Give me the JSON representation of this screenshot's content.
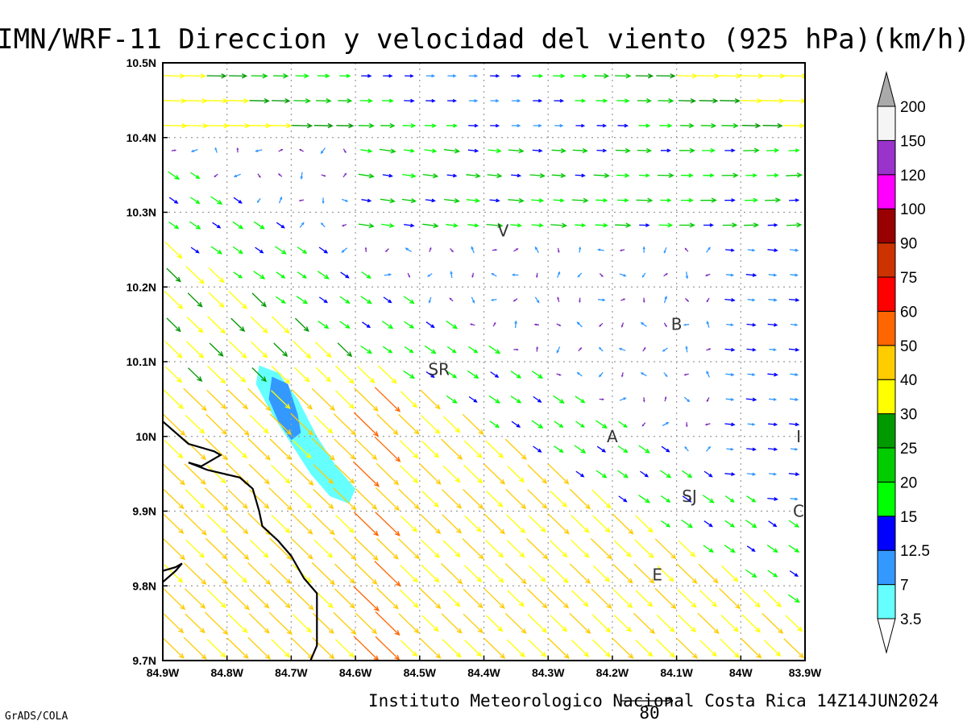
{
  "title": "IMN/WRF-11 Direccion y velocidad del viento (925 hPa)(km/h)",
  "footer": "Instituto Meteorologico Nacional Costa Rica 14Z14JUN2024",
  "software_label": "GrADS/COLA",
  "reference_vector_label": "80",
  "x_axis": {
    "ticks": [
      "84.9W",
      "84.8W",
      "84.7W",
      "84.6W",
      "84.5W",
      "84.4W",
      "84.3W",
      "84.2W",
      "84.1W",
      "84W",
      "83.9W"
    ],
    "range": [
      -84.9,
      -83.9
    ]
  },
  "y_axis": {
    "ticks": [
      "9.7N",
      "9.8N",
      "9.9N",
      "10N",
      "10.1N",
      "10.2N",
      "10.3N",
      "10.4N",
      "10.5N"
    ],
    "range": [
      9.7,
      10.5
    ]
  },
  "colorbar": {
    "labels": [
      "3.5",
      "7",
      "12.5",
      "15",
      "20",
      "25",
      "30",
      "40",
      "50",
      "60",
      "75",
      "90",
      "100",
      "120",
      "150",
      "200"
    ],
    "colors": [
      "#66ffff",
      "#3399ff",
      "#0000ff",
      "#00ff00",
      "#00cc00",
      "#009900",
      "#ffff00",
      "#ffcc00",
      "#ff6600",
      "#ff0000",
      "#cc3300",
      "#990000",
      "#ff00ff",
      "#9933cc",
      "#f5f5f5"
    ],
    "arrow_top_color": "#aaaaaa",
    "arrow_bottom_color": "#ffffff"
  },
  "stations": [
    {
      "label": "V",
      "lon": -84.37,
      "lat": 10.275
    },
    {
      "label": "SR",
      "lon": -84.47,
      "lat": 10.09
    },
    {
      "label": "B",
      "lon": -84.1,
      "lat": 10.15
    },
    {
      "label": "A",
      "lon": -84.2,
      "lat": 10.0
    },
    {
      "label": "SJ",
      "lon": -84.08,
      "lat": 9.92
    },
    {
      "label": "C",
      "lon": -83.91,
      "lat": 9.9
    },
    {
      "label": "E",
      "lon": -84.13,
      "lat": 9.815
    },
    {
      "label": "I",
      "lon": -83.91,
      "lat": 10.0
    }
  ],
  "contours": [
    {
      "name": "speed-3.5",
      "color": "#66ffff",
      "points": [
        [
          -84.75,
          10.095
        ],
        [
          -84.72,
          10.085
        ],
        [
          -84.69,
          10.05
        ],
        [
          -84.66,
          10.0
        ],
        [
          -84.63,
          9.96
        ],
        [
          -84.6,
          9.93
        ],
        [
          -84.61,
          9.91
        ],
        [
          -84.64,
          9.92
        ],
        [
          -84.67,
          9.95
        ],
        [
          -84.7,
          9.99
        ],
        [
          -84.73,
          10.03
        ],
        [
          -84.755,
          10.07
        ]
      ]
    },
    {
      "name": "speed-7",
      "color": "#3399ff",
      "points": [
        [
          -84.73,
          10.08
        ],
        [
          -84.705,
          10.07
        ],
        [
          -84.69,
          10.03
        ],
        [
          -84.685,
          10.005
        ],
        [
          -84.7,
          9.995
        ],
        [
          -84.72,
          10.02
        ],
        [
          -84.735,
          10.05
        ]
      ]
    }
  ],
  "coastline": [
    [
      [
        -84.9,
        10.02
      ],
      [
        -84.86,
        9.99
      ],
      [
        -84.82,
        9.98
      ],
      [
        -84.81,
        9.975
      ],
      [
        -84.84,
        9.96
      ],
      [
        -84.86,
        9.965
      ],
      [
        -84.83,
        9.955
      ],
      [
        -84.78,
        9.945
      ],
      [
        -84.76,
        9.93
      ],
      [
        -84.75,
        9.9
      ],
      [
        -84.745,
        9.88
      ],
      [
        -84.72,
        9.86
      ],
      [
        -84.7,
        9.84
      ],
      [
        -84.68,
        9.81
      ],
      [
        -84.66,
        9.79
      ],
      [
        -84.66,
        9.75
      ],
      [
        -84.66,
        9.72
      ],
      [
        -84.67,
        9.7
      ]
    ],
    [
      [
        -84.9,
        9.82
      ],
      [
        -84.88,
        9.825
      ],
      [
        -84.87,
        9.83
      ],
      [
        -84.88,
        9.82
      ],
      [
        -84.9,
        9.805
      ]
    ]
  ],
  "wind_field": {
    "lon_range": [
      -84.9,
      -83.9
    ],
    "lat_range": [
      9.7,
      10.5
    ],
    "grid_spacing_deg": 0.0333,
    "reference_speed_kmh": 80
  }
}
